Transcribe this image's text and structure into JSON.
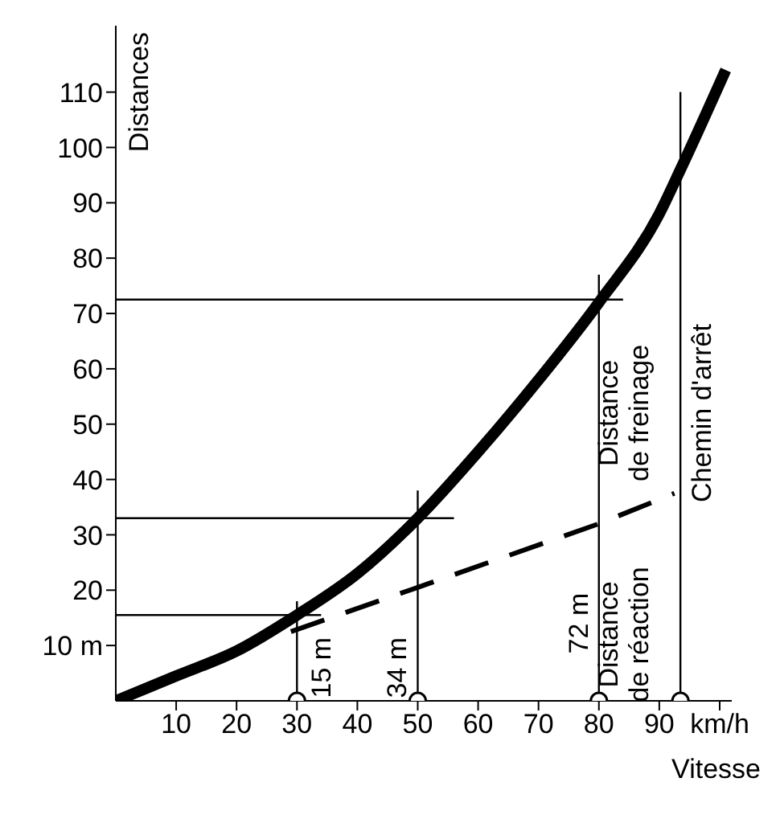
{
  "chart_data": {
    "type": "line",
    "xlabel": "Vitesse",
    "ylabel": "Distances",
    "xlim": [
      0,
      102
    ],
    "ylim": [
      0,
      122
    ],
    "xticks": [
      10,
      20,
      30,
      40,
      50,
      60,
      70,
      80,
      90,
      {
        "value": 100,
        "label": "km/h"
      }
    ],
    "yticks": [
      {
        "value": 10,
        "label": "10 m"
      },
      20,
      30,
      40,
      50,
      60,
      70,
      80,
      90,
      100,
      110
    ],
    "series": [
      {
        "color": "#000000",
        "line_style": "solid",
        "x": [
          0,
          10,
          20,
          30,
          40,
          50,
          60,
          70,
          80,
          90,
          93.5,
          101
        ],
        "values": [
          0,
          4.5,
          9,
          15.5,
          23,
          33,
          45,
          58,
          72,
          88,
          96,
          114
        ]
      },
      {
        "color": "#000000",
        "line_style": "dashed",
        "x": [
          29,
          50,
          80,
          92.5
        ],
        "values": [
          12.5,
          20.5,
          32,
          37.5
        ]
      },
      {
        "type": "line",
        "color": "#000000",
        "line_style": "solid",
        "x": [
          0,
          34
        ],
        "values": [
          15.5,
          15.5
        ]
      },
      {
        "type": "line",
        "color": "#000000",
        "line_style": "solid",
        "x": [
          0,
          56
        ],
        "values": [
          33,
          33
        ]
      },
      {
        "type": "line",
        "color": "#000000",
        "line_style": "solid",
        "x": [
          0,
          84
        ],
        "values": [
          72.5,
          72.5
        ]
      },
      {
        "type": "line",
        "color": "#000000",
        "line_style": "solid",
        "x": [
          30,
          30
        ],
        "values": [
          0,
          18
        ]
      },
      {
        "type": "line",
        "color": "#000000",
        "line_style": "solid",
        "x": [
          50,
          50
        ],
        "values": [
          0,
          38
        ]
      },
      {
        "type": "line",
        "color": "#000000",
        "line_style": "solid",
        "x": [
          80,
          80
        ],
        "values": [
          0,
          77
        ]
      },
      {
        "type": "line",
        "color": "#000000",
        "line_style": "solid",
        "x": [
          93.5,
          93.5
        ],
        "values": [
          0,
          110
        ]
      },
      {
        "type": "scatter",
        "color": "#000000",
        "marker": "circle",
        "x": [
          30,
          50,
          80,
          93.5
        ],
        "values": [
          0,
          0,
          0,
          0
        ]
      }
    ],
    "annotations": [
      "15 m",
      "34 m",
      "72 m",
      "Distance\nde freinage",
      "Distance\nde réaction",
      "Chemin d'arrêt"
    ]
  }
}
